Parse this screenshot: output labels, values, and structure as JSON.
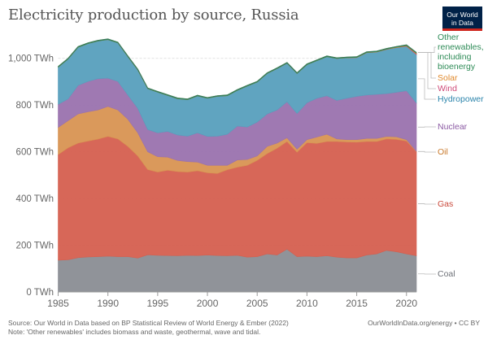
{
  "title": "Electricity production by source, Russia",
  "logo": {
    "line1": "Our World",
    "line2": "in Data"
  },
  "footer": {
    "source": "Source: Our World in Data based on BP Statistical Review of World Energy & Ember (2022)",
    "note": "Note: 'Other renewables' includes biomass and waste, geothermal, wave and tidal.",
    "credit": "OurWorldInData.org/energy • CC BY"
  },
  "chart_data": {
    "type": "area",
    "stacked": true,
    "title": "Electricity production by source, Russia",
    "xlabel": "",
    "ylabel": "",
    "unit": "TWh",
    "xlim": [
      1985,
      2021
    ],
    "ylim": [
      0,
      1100
    ],
    "grid": "horizontal dashed",
    "legend_placement": "right (inline labels)",
    "x_ticks": [
      "1985",
      "1990",
      "1995",
      "2000",
      "2005",
      "2010",
      "2015",
      "2020"
    ],
    "y_ticks": [
      {
        "v": 0,
        "label": "0 TWh"
      },
      {
        "v": 200,
        "label": "200 TWh"
      },
      {
        "v": 400,
        "label": "400 TWh"
      },
      {
        "v": 600,
        "label": "600 TWh"
      },
      {
        "v": 800,
        "label": "800 TWh"
      },
      {
        "v": 1000,
        "label": "1,000 TWh"
      }
    ],
    "x": [
      1985,
      1986,
      1987,
      1988,
      1989,
      1990,
      1991,
      1992,
      1993,
      1994,
      1995,
      1996,
      1997,
      1998,
      1999,
      2000,
      2001,
      2002,
      2003,
      2004,
      2005,
      2006,
      2007,
      2008,
      2009,
      2010,
      2011,
      2012,
      2013,
      2014,
      2015,
      2016,
      2017,
      2018,
      2019,
      2020,
      2021
    ],
    "series": [
      {
        "name": "Coal",
        "color": "#8a8d93",
        "values": [
          136,
          138,
          147,
          150,
          151,
          153,
          151,
          151,
          145,
          159,
          157,
          156,
          155,
          157,
          156,
          158,
          156,
          155,
          157,
          149,
          151,
          163,
          158,
          183,
          151,
          153,
          151,
          155,
          149,
          146,
          146,
          158,
          163,
          178,
          172,
          163,
          155
        ]
      },
      {
        "name": "Gas",
        "color": "#d55f4f",
        "values": [
          452,
          479,
          490,
          496,
          503,
          513,
          504,
          472,
          437,
          365,
          356,
          365,
          360,
          356,
          363,
          352,
          351,
          368,
          377,
          393,
          412,
          429,
          457,
          461,
          447,
          486,
          485,
          489,
          495,
          496,
          495,
          486,
          481,
          477,
          481,
          483,
          445
        ]
      },
      {
        "name": "Oil",
        "color": "#d89352",
        "values": [
          116,
          116,
          125,
          125,
          125,
          128,
          124,
          116,
          99,
          76,
          66,
          56,
          48,
          45,
          37,
          32,
          35,
          19,
          31,
          25,
          19,
          31,
          22,
          16,
          13,
          13,
          27,
          31,
          11,
          10,
          11,
          13,
          13,
          11,
          11,
          6,
          2
        ]
      },
      {
        "name": "Nuclear",
        "color": "#9a72ae",
        "values": [
          99,
          93,
          122,
          130,
          134,
          121,
          122,
          104,
          105,
          95,
          102,
          110,
          109,
          109,
          125,
          124,
          125,
          133,
          145,
          139,
          145,
          139,
          142,
          154,
          153,
          158,
          166,
          165,
          165,
          177,
          185,
          186,
          189,
          183,
          191,
          209,
          207
        ]
      },
      {
        "name": "Hydropower",
        "color": "#579fbd",
        "values": [
          159,
          171,
          163,
          162,
          161,
          165,
          165,
          164,
          164,
          175,
          174,
          154,
          155,
          156,
          158,
          163,
          170,
          165,
          153,
          175,
          171,
          173,
          177,
          165,
          171,
          163,
          161,
          167,
          179,
          173,
          166,
          181,
          181,
          189,
          191,
          190,
          207
        ]
      },
      {
        "name": "Wind",
        "color": "#cf4a78",
        "values": [
          0,
          0,
          0,
          0,
          0,
          0,
          0,
          0,
          0,
          0,
          0,
          0,
          0,
          0,
          0,
          0,
          0,
          0,
          0,
          0,
          0,
          0,
          0,
          0,
          0,
          0,
          0,
          0,
          0,
          0.1,
          0.2,
          0.1,
          0.1,
          0.2,
          0.3,
          1.4,
          3.6
        ]
      },
      {
        "name": "Solar",
        "color": "#e0892c",
        "values": [
          0,
          0,
          0,
          0,
          0,
          0,
          0,
          0,
          0,
          0,
          0,
          0,
          0,
          0,
          0,
          0,
          0,
          0,
          0,
          0,
          0,
          0,
          0,
          0,
          0,
          0,
          0,
          0,
          0,
          0.2,
          0.5,
          0.5,
          0.6,
          0.8,
          1.3,
          2.0,
          2.3
        ]
      },
      {
        "name": "Other renewables, including bioenergy",
        "color": "#2e8b57",
        "values": [
          3,
          3,
          3,
          3,
          3,
          3,
          3,
          3,
          3,
          3,
          3,
          3,
          3,
          3,
          3,
          3,
          3,
          3,
          3,
          3,
          3,
          3,
          3,
          3,
          3,
          3,
          3,
          3,
          3,
          3,
          3,
          3,
          3,
          3,
          3,
          3,
          3
        ]
      }
    ]
  }
}
